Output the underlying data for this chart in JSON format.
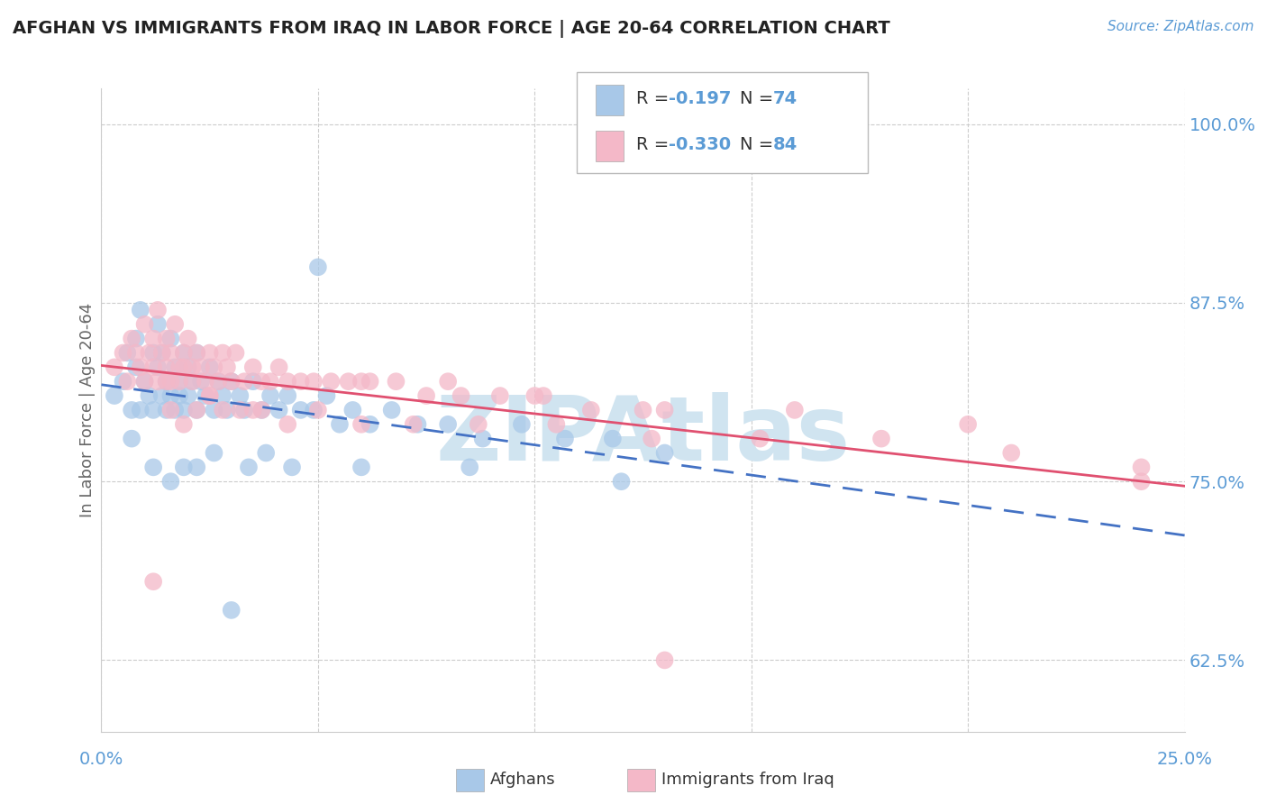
{
  "title": "AFGHAN VS IMMIGRANTS FROM IRAQ IN LABOR FORCE | AGE 20-64 CORRELATION CHART",
  "source": "Source: ZipAtlas.com",
  "ylabel": "In Labor Force | Age 20-64",
  "xlim": [
    0.0,
    0.25
  ],
  "ylim": [
    0.575,
    1.025
  ],
  "yticks": [
    0.625,
    0.75,
    0.875,
    1.0
  ],
  "ytick_labels": [
    "62.5%",
    "75.0%",
    "87.5%",
    "100.0%"
  ],
  "xticks": [
    0.0,
    0.05,
    0.1,
    0.15,
    0.2,
    0.25
  ],
  "afghans_R": "-0.197",
  "afghans_N": "74",
  "iraq_R": "-0.330",
  "iraq_N": "84",
  "blue_scatter_color": "#a8c8e8",
  "pink_scatter_color": "#f4b8c8",
  "blue_line_color": "#4472c4",
  "pink_line_color": "#e05070",
  "grid_color": "#cccccc",
  "title_color": "#222222",
  "axis_label_color": "#5b9bd5",
  "watermark_color": "#d0e4f0",
  "afghans_x": [
    0.003,
    0.005,
    0.006,
    0.007,
    0.008,
    0.008,
    0.009,
    0.009,
    0.01,
    0.011,
    0.012,
    0.012,
    0.013,
    0.013,
    0.014,
    0.014,
    0.015,
    0.015,
    0.016,
    0.016,
    0.017,
    0.017,
    0.018,
    0.018,
    0.019,
    0.019,
    0.02,
    0.02,
    0.021,
    0.022,
    0.022,
    0.023,
    0.024,
    0.025,
    0.026,
    0.027,
    0.028,
    0.029,
    0.03,
    0.032,
    0.033,
    0.035,
    0.037,
    0.039,
    0.041,
    0.043,
    0.046,
    0.049,
    0.052,
    0.055,
    0.058,
    0.062,
    0.067,
    0.073,
    0.08,
    0.088,
    0.097,
    0.107,
    0.118,
    0.13,
    0.007,
    0.012,
    0.016,
    0.019,
    0.022,
    0.026,
    0.03,
    0.034,
    0.038,
    0.044,
    0.05,
    0.06,
    0.085,
    0.12
  ],
  "afghans_y": [
    0.81,
    0.82,
    0.84,
    0.8,
    0.83,
    0.85,
    0.87,
    0.8,
    0.82,
    0.81,
    0.84,
    0.8,
    0.83,
    0.86,
    0.81,
    0.84,
    0.82,
    0.8,
    0.85,
    0.81,
    0.83,
    0.8,
    0.82,
    0.81,
    0.84,
    0.8,
    0.83,
    0.81,
    0.82,
    0.84,
    0.8,
    0.82,
    0.81,
    0.83,
    0.8,
    0.82,
    0.81,
    0.8,
    0.82,
    0.81,
    0.8,
    0.82,
    0.8,
    0.81,
    0.8,
    0.81,
    0.8,
    0.8,
    0.81,
    0.79,
    0.8,
    0.79,
    0.8,
    0.79,
    0.79,
    0.78,
    0.79,
    0.78,
    0.78,
    0.77,
    0.78,
    0.76,
    0.75,
    0.76,
    0.76,
    0.77,
    0.66,
    0.76,
    0.77,
    0.76,
    0.9,
    0.76,
    0.76,
    0.75
  ],
  "iraq_x": [
    0.003,
    0.005,
    0.006,
    0.007,
    0.008,
    0.009,
    0.01,
    0.01,
    0.011,
    0.012,
    0.012,
    0.013,
    0.013,
    0.014,
    0.015,
    0.015,
    0.016,
    0.016,
    0.017,
    0.018,
    0.018,
    0.019,
    0.019,
    0.02,
    0.021,
    0.021,
    0.022,
    0.023,
    0.024,
    0.025,
    0.026,
    0.027,
    0.028,
    0.029,
    0.03,
    0.031,
    0.033,
    0.035,
    0.037,
    0.039,
    0.041,
    0.043,
    0.046,
    0.049,
    0.053,
    0.057,
    0.062,
    0.068,
    0.075,
    0.083,
    0.092,
    0.102,
    0.113,
    0.125,
    0.012,
    0.016,
    0.019,
    0.022,
    0.025,
    0.028,
    0.032,
    0.037,
    0.043,
    0.05,
    0.06,
    0.072,
    0.087,
    0.105,
    0.127,
    0.152,
    0.18,
    0.21,
    0.24,
    0.06,
    0.08,
    0.1,
    0.13,
    0.16,
    0.2,
    0.24,
    0.015,
    0.025,
    0.035,
    0.13
  ],
  "iraq_y": [
    0.83,
    0.84,
    0.82,
    0.85,
    0.84,
    0.83,
    0.82,
    0.86,
    0.84,
    0.85,
    0.83,
    0.82,
    0.87,
    0.84,
    0.83,
    0.85,
    0.82,
    0.84,
    0.86,
    0.83,
    0.82,
    0.84,
    0.83,
    0.85,
    0.83,
    0.82,
    0.84,
    0.83,
    0.82,
    0.84,
    0.83,
    0.82,
    0.84,
    0.83,
    0.82,
    0.84,
    0.82,
    0.83,
    0.82,
    0.82,
    0.83,
    0.82,
    0.82,
    0.82,
    0.82,
    0.82,
    0.82,
    0.82,
    0.81,
    0.81,
    0.81,
    0.81,
    0.8,
    0.8,
    0.68,
    0.8,
    0.79,
    0.8,
    0.81,
    0.8,
    0.8,
    0.8,
    0.79,
    0.8,
    0.79,
    0.79,
    0.79,
    0.79,
    0.78,
    0.78,
    0.78,
    0.77,
    0.76,
    0.82,
    0.82,
    0.81,
    0.8,
    0.8,
    0.79,
    0.75,
    0.82,
    0.81,
    0.8,
    0.625
  ]
}
